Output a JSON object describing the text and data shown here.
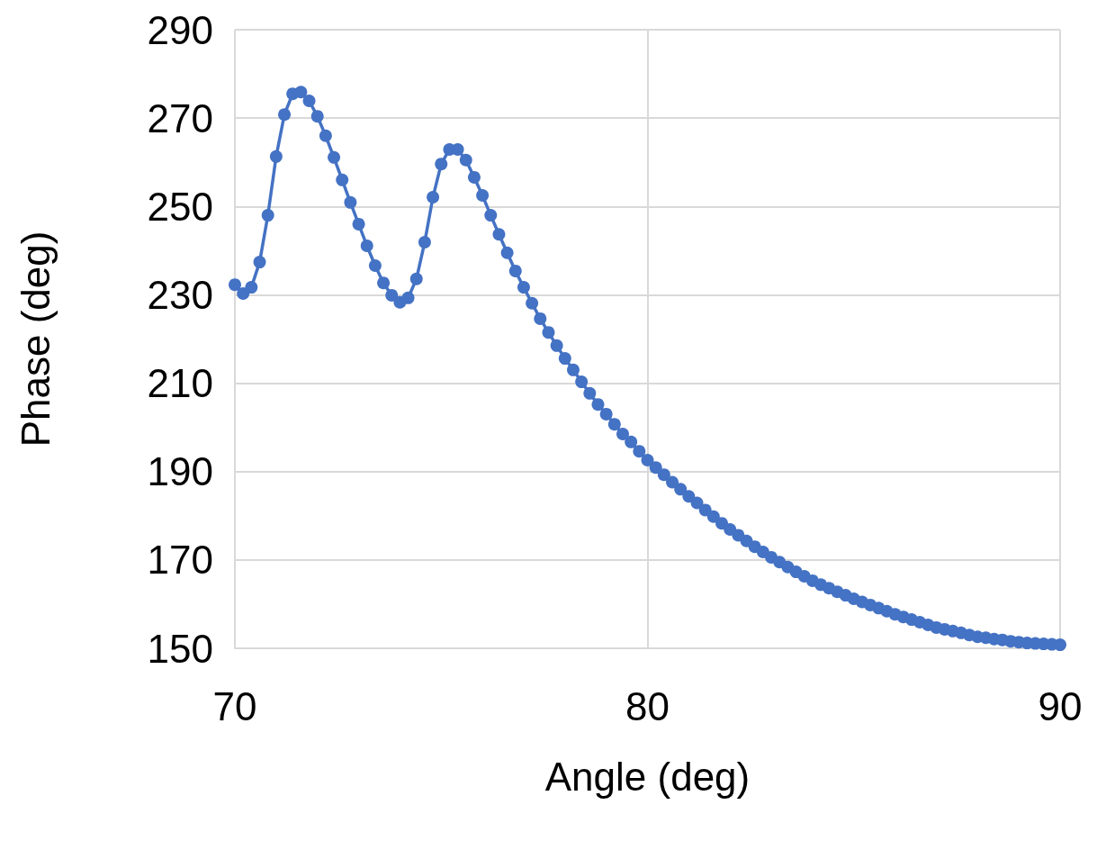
{
  "chart_data": {
    "type": "line",
    "xlabel": "Angle (deg)",
    "ylabel": "Phase (deg)",
    "x": [
      70,
      70.2,
      70.4,
      70.6,
      70.8,
      71,
      71.2,
      71.4,
      71.6,
      71.8,
      72,
      72.2,
      72.4,
      72.6,
      72.8,
      73,
      73.2,
      73.4,
      73.6,
      73.8,
      74,
      74.2,
      74.4,
      74.6,
      74.8,
      75,
      75.2,
      75.4,
      75.6,
      75.8,
      76,
      76.2,
      76.4,
      76.6,
      76.8,
      77,
      77.2,
      77.4,
      77.6,
      77.8,
      78,
      78.2,
      78.4,
      78.6,
      78.8,
      79,
      79.2,
      79.4,
      79.6,
      79.8,
      80,
      80.2,
      80.4,
      80.6,
      80.8,
      81,
      81.2,
      81.4,
      81.6,
      81.8,
      82,
      82.2,
      82.4,
      82.6,
      82.8,
      83,
      83.2,
      83.4,
      83.6,
      83.8,
      84,
      84.2,
      84.4,
      84.6,
      84.8,
      85,
      85.2,
      85.4,
      85.6,
      85.8,
      86,
      86.2,
      86.4,
      86.6,
      86.8,
      87,
      87.2,
      87.4,
      87.6,
      87.8,
      88,
      88.2,
      88.4,
      88.6,
      88.8,
      89,
      89.2,
      89.4,
      89.6,
      89.8,
      90
    ],
    "series": [
      {
        "color": "#4472c4",
        "values": [
          232.3,
          230.3,
          231.7,
          237.4,
          248,
          261.3,
          270.8,
          275.5,
          275.9,
          273.9,
          270.4,
          266,
          261.1,
          256,
          250.9,
          246,
          241.1,
          236.6,
          232.7,
          229.9,
          228.3,
          229.3,
          233.6,
          241.9,
          252.1,
          259.6,
          262.9,
          262.9,
          260.5,
          256.6,
          252.5,
          248,
          243.7,
          239.5,
          235.4,
          231.7,
          228.1,
          224.6,
          221.5,
          218.5,
          215.6,
          213,
          210.3,
          207.7,
          205.2,
          203,
          200.7,
          198.5,
          196.7,
          194.6,
          192.6,
          190.9,
          189.3,
          187.6,
          186,
          184.4,
          182.9,
          181.3,
          179.8,
          178.3,
          176.9,
          175.6,
          174.3,
          173,
          171.8,
          170.6,
          169.5,
          168.4,
          167.3,
          166.3,
          165.3,
          164.4,
          163.6,
          162.8,
          162,
          161.2,
          160.5,
          159.8,
          159.1,
          158.4,
          157.7,
          157.1,
          156.5,
          155.9,
          155.3,
          154.7,
          154.3,
          153.9,
          153.5,
          153,
          152.6,
          152.4,
          152.1,
          151.9,
          151.6,
          151.4,
          151.2,
          151.1,
          151,
          150.9,
          150.8
        ]
      }
    ],
    "xlim": [
      70,
      90
    ],
    "xticks": [
      70,
      80,
      90
    ],
    "ylim": [
      150,
      290
    ],
    "yticks": [
      150,
      170,
      190,
      210,
      230,
      250,
      270,
      290
    ],
    "grid": true,
    "marker": "circle",
    "line_style": "solid"
  }
}
